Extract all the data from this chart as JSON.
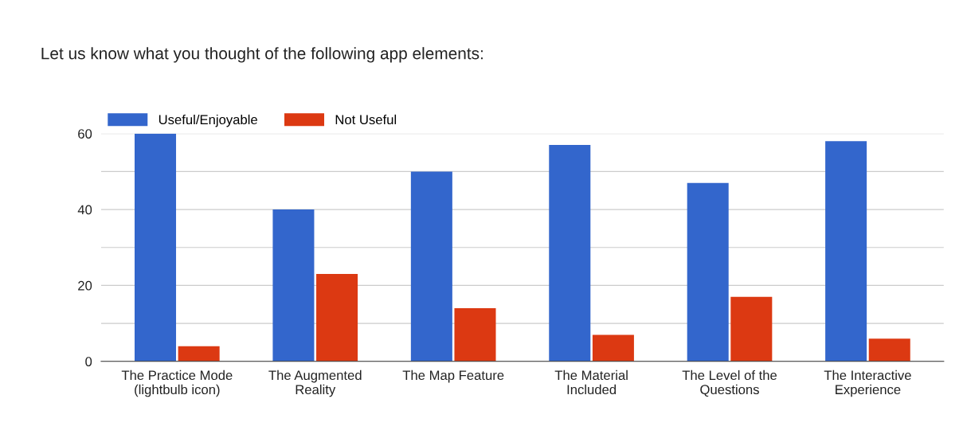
{
  "chart_data": {
    "type": "bar",
    "title": "Let us know what you thought of the following app elements:",
    "categories": [
      "The Practice Mode\n(lightbulb icon)",
      "The Augmented\nReality",
      "The Map Feature",
      "The Material\nIncluded",
      "The Level of the\nQuestions",
      "The Interactive\nExperience"
    ],
    "series": [
      {
        "name": "Useful/Enjoyable",
        "color": "#3366cc",
        "values": [
          60,
          40,
          50,
          57,
          47,
          58
        ]
      },
      {
        "name": "Not Useful",
        "color": "#dc3912",
        "values": [
          4,
          23,
          14,
          7,
          17,
          6
        ]
      }
    ],
    "ylim": [
      0,
      60
    ],
    "yticks": [
      0,
      {
        "value": 10,
        "label": null
      },
      20,
      {
        "value": 30,
        "label": null
      },
      40,
      {
        "value": 50,
        "label": null
      },
      60
    ],
    "grid": "y",
    "legend": "top left"
  }
}
